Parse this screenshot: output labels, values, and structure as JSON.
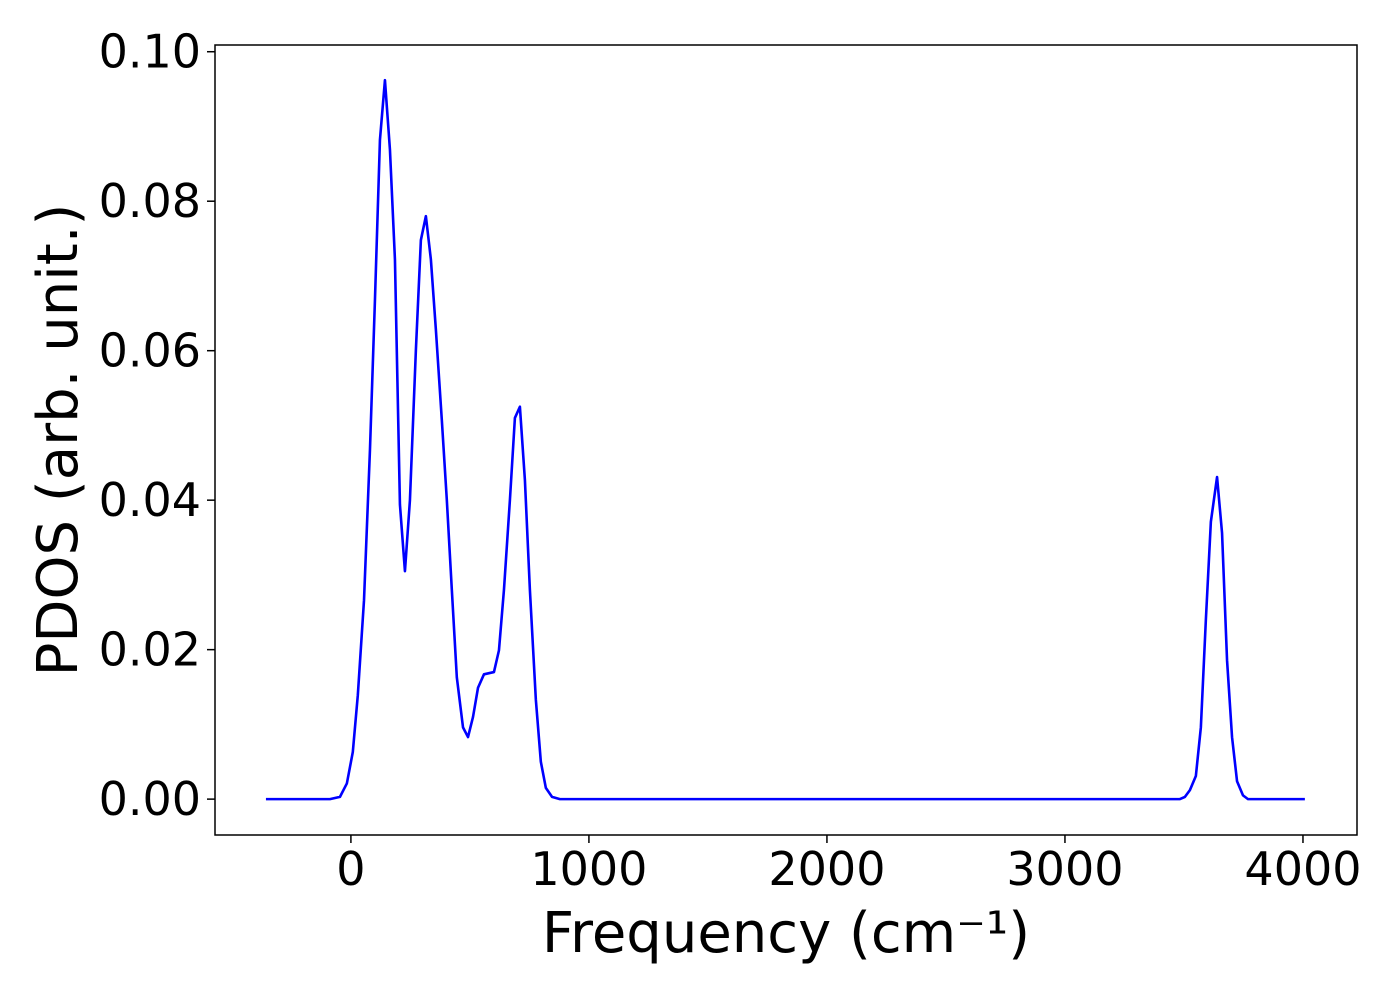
{
  "chart_data": {
    "type": "line",
    "x_label": "Frequency (cm⁻¹)",
    "y_label": "PDOS (arb. unit.)",
    "xlim": [
      -571,
      4227
    ],
    "ylim": [
      -0.0048,
      0.1009
    ],
    "xticks": [
      0,
      1000,
      2000,
      3000,
      4000
    ],
    "yticks": [
      {
        "value": 0,
        "label": "0.00"
      },
      {
        "value": 0.02,
        "label": "0.02"
      },
      {
        "value": 0.04,
        "label": "0.04"
      },
      {
        "value": 0.06,
        "label": "0.06"
      },
      {
        "value": 0.08,
        "label": "0.08"
      },
      {
        "value": 0.1,
        "label": "0.10"
      }
    ],
    "grid": false,
    "series": [
      {
        "color": "#0000ff",
        "x": [
          -357,
          -88,
          -46,
          -17,
          8,
          29,
          55,
          80,
          101,
          122,
          143,
          164,
          185,
          206,
          227,
          248,
          273,
          294,
          315,
          336,
          357,
          382,
          403,
          424,
          445,
          471,
          492,
          513,
          534,
          559,
          601,
          622,
          643,
          668,
          689,
          710,
          731,
          752,
          777,
          798,
          819,
          845,
          878,
          3483,
          3504,
          3525,
          3550,
          3571,
          3592,
          3613,
          3639,
          3660,
          3681,
          3702,
          3723,
          3748,
          3769,
          4008
        ],
        "values": [
          0,
          0,
          0.0003,
          0.0021,
          0.0063,
          0.0139,
          0.0266,
          0.0467,
          0.0668,
          0.0882,
          0.0962,
          0.0869,
          0.0722,
          0.0394,
          0.0305,
          0.04,
          0.0601,
          0.0748,
          0.078,
          0.0722,
          0.0628,
          0.0507,
          0.04,
          0.028,
          0.0163,
          0.0096,
          0.0083,
          0.011,
          0.0149,
          0.0167,
          0.017,
          0.0199,
          0.028,
          0.04,
          0.051,
          0.0525,
          0.0427,
          0.028,
          0.0133,
          0.005,
          0.0015,
          0.0003,
          0,
          0,
          0.0003,
          0.0012,
          0.0031,
          0.0096,
          0.024,
          0.0371,
          0.0431,
          0.0356,
          0.0186,
          0.0083,
          0.0024,
          0.0005,
          0,
          0
        ]
      }
    ]
  }
}
